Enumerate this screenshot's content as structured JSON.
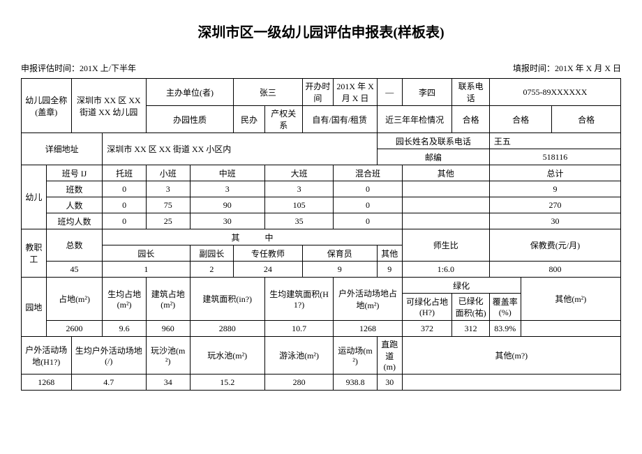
{
  "title": "深圳市区一级幼儿园评估申报表(样板表)",
  "meta": {
    "left": "申报评估时间：201X 上/下半年",
    "right": "填报时间：201X 年 X 月 X 日"
  },
  "row1": {
    "name_label": "幼儿园全称(盖章)",
    "name_value": "深圳市 XX 区 XX 街道 XX 幼儿园",
    "host_label": "主办单位(者)",
    "host_value": "张三",
    "open_label": "开办时间",
    "open_value": "201X 年 X 月 X 日",
    "arrow": "—",
    "person": "李四",
    "phone_label": "联系电话",
    "phone_value": "0755-89XXXXXX"
  },
  "row2": {
    "nature_label": "办园性质",
    "nature_value": "民办",
    "property_label": "产权关系",
    "property_value": "自有/国有/租赁",
    "inspect_label": "近三年年检情况",
    "pass": "合格"
  },
  "row3": {
    "addr_label": "详细地址",
    "addr_value": "深圳市 XX 区 XX 街道 XX 小区内",
    "principal_label": "园长姓名及联系电话",
    "principal_value": "王五"
  },
  "row4": {
    "postcode_label": "邮编",
    "postcode_value": "518116"
  },
  "classes": {
    "section_label": "幼儿",
    "header": [
      "班号 IJ",
      "托班",
      "小班",
      "中班",
      "大班",
      "混合班",
      "其他",
      "总计"
    ],
    "rows": [
      [
        "班数",
        "0",
        "3",
        "3",
        "3",
        "0",
        "",
        "9"
      ],
      [
        "人数",
        "0",
        "75",
        "90",
        "105",
        "0",
        "",
        "270"
      ],
      [
        "班均人数",
        "0",
        "25",
        "30",
        "35",
        "0",
        "",
        "30"
      ]
    ]
  },
  "staff": {
    "section_label": "教职工",
    "total_label": "总数",
    "within_label": "其　　　中",
    "ratio_label": "师生比",
    "fee_label": "保教费(元/月)",
    "cols": [
      "园长",
      "副园长",
      "专任教师",
      "保育员",
      "其他"
    ],
    "total_value": "45",
    "values": [
      "1",
      "2",
      "24",
      "9",
      "9"
    ],
    "ratio_value": "1:6.0",
    "fee_value": "800"
  },
  "site": {
    "section_label": "园地",
    "cols": [
      "占地(m²)",
      "生均占地(m²)",
      "建筑占地(m²)",
      "建筑面积(in?)",
      "生均建筑面积(H1?)",
      "户外活动场地占地(m²)"
    ],
    "green_label": "绿化",
    "green_cols": [
      "可绿化占地(H?)",
      "已绿化面积(祐)",
      "覆盖率(%)"
    ],
    "other_label": "其他(m²)",
    "values": [
      "2600",
      "9.6",
      "960",
      "2880",
      "10.7",
      "1268",
      "372",
      "312",
      "83.9%",
      ""
    ]
  },
  "outdoor": {
    "section_label": "户外活动场地(H1?)",
    "cols": [
      "生均户外活动场地(/)",
      "玩沙池(m²)",
      "玩水池(m²)",
      "游泳池(m²)",
      "运动场(m²)",
      "直跑道(m)"
    ],
    "other_label": "其他(m?)",
    "values": [
      "1268",
      "4.7",
      "34",
      "15.2",
      "280",
      "938.8",
      "30",
      ""
    ]
  }
}
